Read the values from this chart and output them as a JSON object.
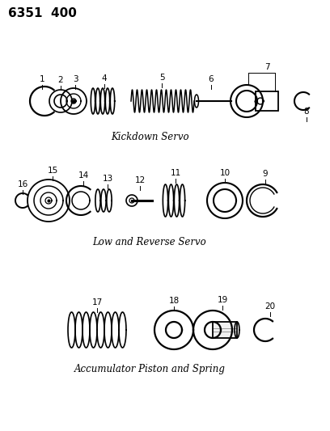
{
  "title": "6351  400",
  "background_color": "#ffffff",
  "text_color": "#000000",
  "line_color": "#000000",
  "section1_label": "Kickdown Servo",
  "section2_label": "Low and Reverse Servo",
  "section3_label": "Accumulator Piston and Spring",
  "figsize": [
    4.08,
    5.33
  ],
  "dpi": 100
}
